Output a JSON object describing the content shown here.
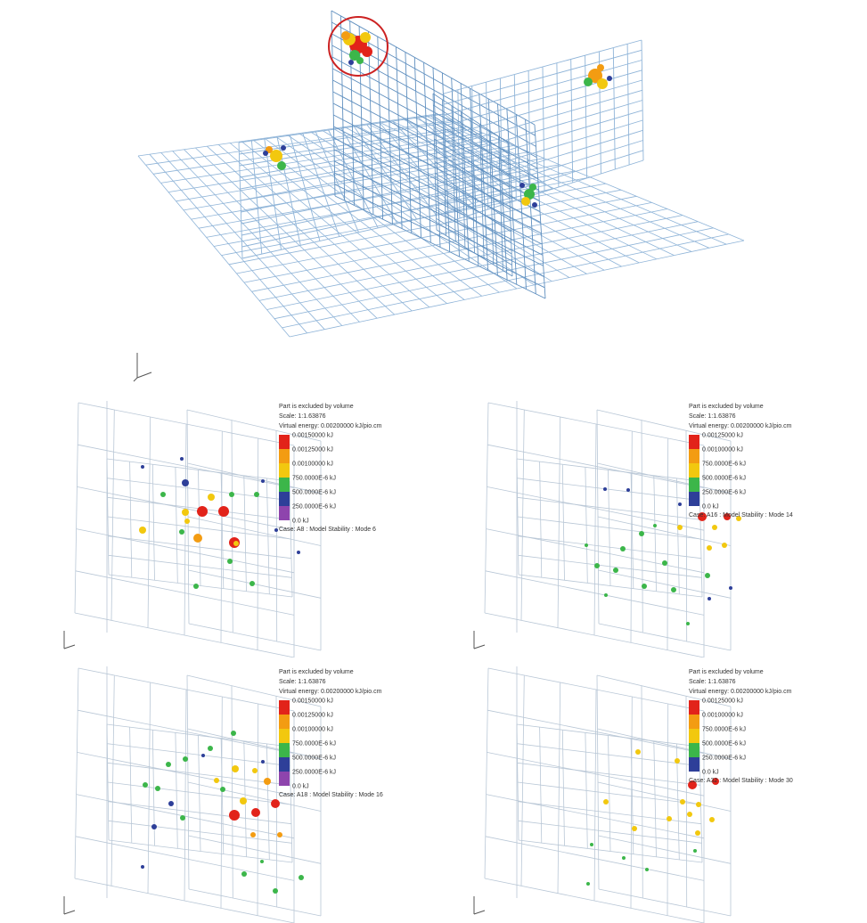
{
  "colors": {
    "mesh": "#8fb4d8",
    "mesh_dark": "#5f8fbf",
    "panel_mesh": "#b9c7d6",
    "highlight_circle": "#cc2222",
    "axis": "#555555",
    "legend_text": "#333333"
  },
  "legend_palette": [
    "#e2231a",
    "#f39c12",
    "#f2c80f",
    "#3cb64a",
    "#2e3f99",
    "#8e44ad"
  ],
  "panels": [
    {
      "header_lines": [
        "Part is excluded by volume",
        "Scale: 1:1.63876",
        "Virtual energy: 0.00200000 kJ/pio.cm"
      ],
      "legend_labels": [
        "0.00150000 kJ",
        "0.00125000 kJ",
        "0.00100000 kJ",
        "750.0000E-6 kJ",
        "500.0000E-6 kJ",
        "250.0000E-6 kJ",
        "0.0 kJ"
      ],
      "legend_colors": [
        "#e2231a",
        "#f39c12",
        "#f2c80f",
        "#3cb64a",
        "#2e3f99",
        "#8e44ad"
      ],
      "case_label": "Case: A8 : Model Stability : Mode 6"
    },
    {
      "header_lines": [
        "Part is excluded by volume",
        "Scale: 1:1.63876",
        "Virtual energy: 0.00200000 kJ/pio.cm"
      ],
      "legend_labels": [
        "0.00125000 kJ",
        "0.00100000 kJ",
        "750.0000E-6 kJ",
        "500.0000E-6 kJ",
        "250.0000E-6 kJ",
        "0.0 kJ"
      ],
      "legend_colors": [
        "#e2231a",
        "#f39c12",
        "#f2c80f",
        "#3cb64a",
        "#2e3f99"
      ],
      "case_label": "Case: A16 : Model Stability : Mode 14"
    },
    {
      "header_lines": [
        "Part is excluded by volume",
        "Scale: 1:1.63876",
        "Virtual energy: 0.00200000 kJ/pio.cm"
      ],
      "legend_labels": [
        "0.00150000 kJ",
        "0.00125000 kJ",
        "0.00100000 kJ",
        "750.0000E-6 kJ",
        "500.0000E-6 kJ",
        "250.0000E-6 kJ",
        "0.0 kJ"
      ],
      "legend_colors": [
        "#e2231a",
        "#f39c12",
        "#f2c80f",
        "#3cb64a",
        "#2e3f99",
        "#8e44ad"
      ],
      "case_label": "Case: A18 : Model Stability : Mode 16"
    },
    {
      "header_lines": [
        "Part is excluded by volume",
        "Scale: 1:1.63876",
        "Virtual energy: 0.00200000 kJ/pio.cm"
      ],
      "legend_labels": [
        "0.00125000 kJ",
        "0.00100000 kJ",
        "750.0000E-6 kJ",
        "500.0000E-6 kJ",
        "250.0000E-6 kJ",
        "0.0 kJ"
      ],
      "legend_colors": [
        "#e2231a",
        "#f39c12",
        "#f2c80f",
        "#3cb64a",
        "#2e3f99"
      ],
      "case_label": "Case: A32 : Model Stability : Mode 30"
    }
  ]
}
